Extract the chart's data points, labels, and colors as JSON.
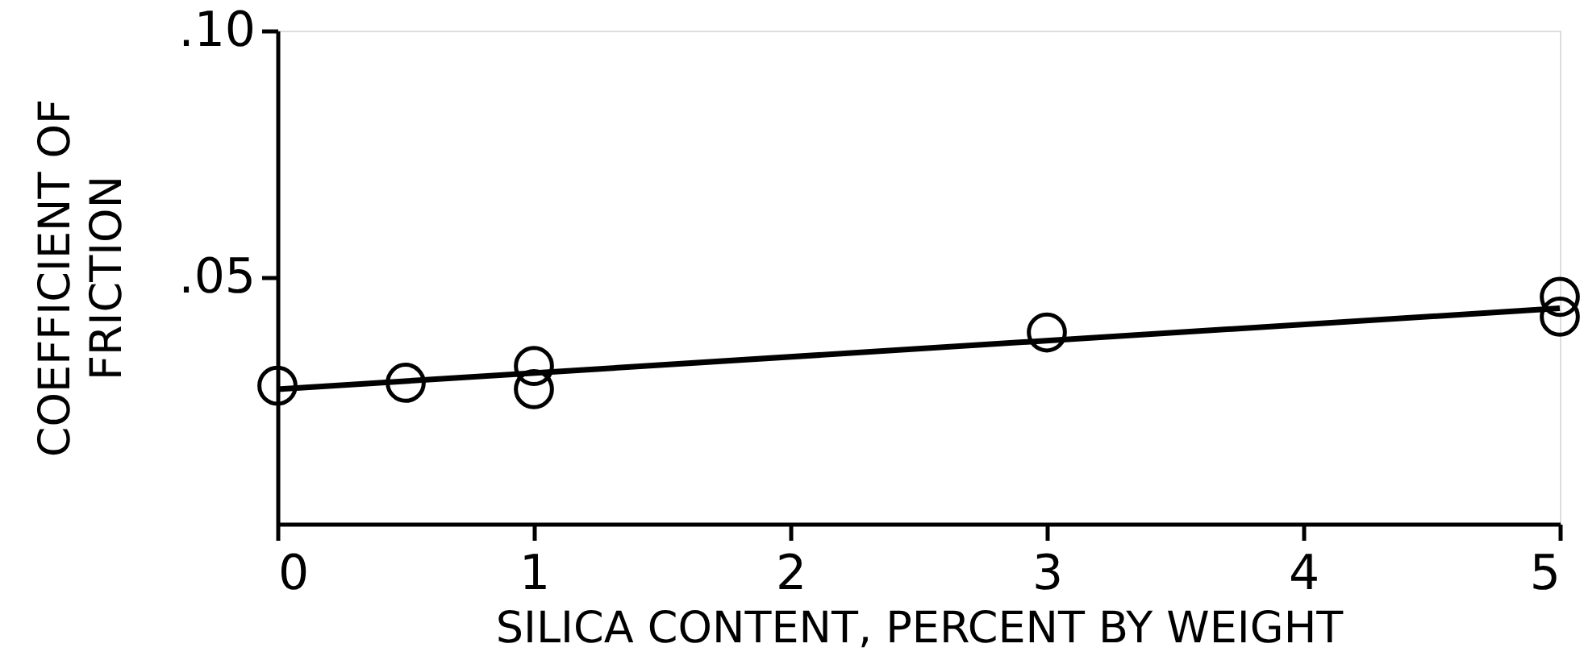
{
  "chart_data": {
    "type": "scatter",
    "xlabel": "SILICA CONTENT, PERCENT BY WEIGHT",
    "ylabel": "COEFFICIENT OF\nFRICTION",
    "xlim": [
      0,
      5
    ],
    "ylim": [
      0,
      0.1
    ],
    "xticks": [
      0,
      1,
      2,
      3,
      4,
      5
    ],
    "yticks": [
      {
        "value": 0.05,
        "label": ".05"
      },
      {
        "value": 0.1,
        "label": ".10"
      }
    ],
    "grid": false,
    "series": [
      {
        "color": "#000000",
        "marker": "circle",
        "x": [
          0,
          0.5,
          1,
          1,
          3,
          5,
          5
        ],
        "values": [
          0.028,
          0.0286,
          0.032,
          0.0273,
          0.0388,
          0.046,
          0.042
        ]
      },
      {
        "type": "line",
        "color": "#000000",
        "line_style": "solid",
        "x": [
          0,
          5
        ],
        "values": [
          0.0273,
          0.0437
        ]
      }
    ]
  }
}
